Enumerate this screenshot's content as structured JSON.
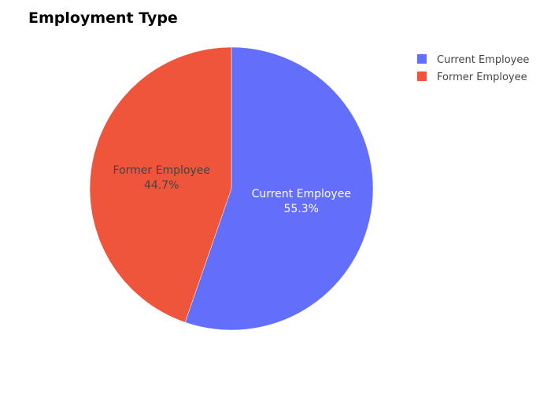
{
  "chart_data": {
    "type": "pie",
    "title": "Employment Type",
    "labels": [
      "Current Employee",
      "Former Employee"
    ],
    "values": [
      55.3,
      44.7
    ],
    "percent_labels": [
      "55.3%",
      "44.7%"
    ],
    "colors": [
      "#636efa",
      "#ef553b"
    ],
    "label_colors": [
      "#ffffff",
      "#444444"
    ],
    "legend": {
      "placement": "top-right",
      "entries": [
        "Current Employee",
        "Former Employee"
      ]
    },
    "start_angle": "12 o'clock",
    "direction": "clockwise"
  }
}
